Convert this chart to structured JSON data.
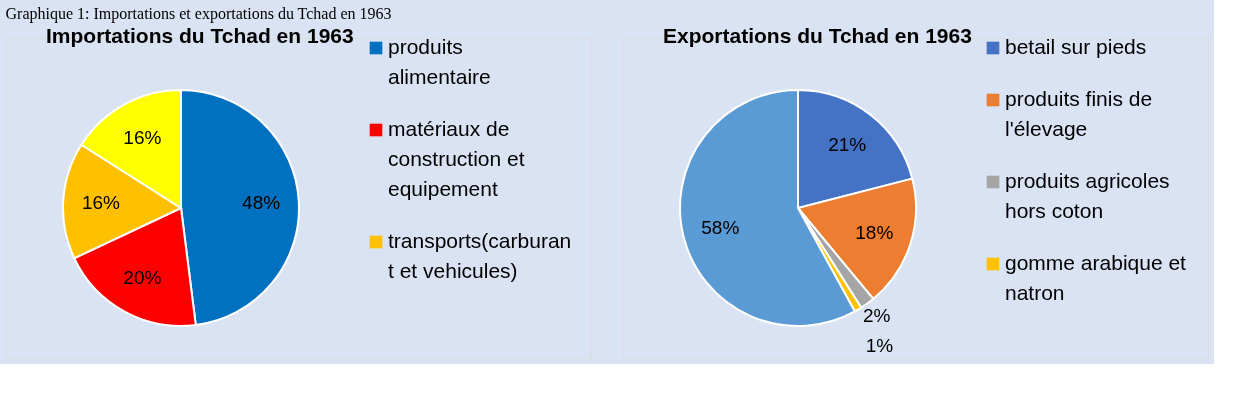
{
  "chart_data": [
    {
      "type": "pie",
      "title": "Importations du Tchad en 1963",
      "annotations": [
        "Graphique 1: Importations et exportations du Tchad en 1963"
      ],
      "categories": [
        "produits alimentaire",
        "matériaux de construction et equipement",
        "transports(carburant et vehicules)",
        null
      ],
      "values": [
        48,
        20,
        16,
        16
      ],
      "value_labels": [
        "48%",
        "20%",
        "16%",
        "16%"
      ],
      "colors": [
        "#0070c0",
        "#ff0000",
        "#ffc000",
        "#ffff00"
      ],
      "legend": "right"
    },
    {
      "type": "pie",
      "title": "Exportations du Tchad en 1963",
      "categories": [
        "betail sur pieds",
        "produits finis de l'élevage",
        "produits agricoles hors coton",
        "gomme arabique et natron",
        null
      ],
      "values": [
        21,
        18,
        2,
        1,
        58
      ],
      "value_labels": [
        "21%",
        "18%",
        "2%",
        "1%",
        "58%"
      ],
      "colors": [
        "#4472c4",
        "#ed7d31",
        "#a5a5a5",
        "#ffc000",
        "#5b9bd5"
      ],
      "legend": "right"
    }
  ]
}
